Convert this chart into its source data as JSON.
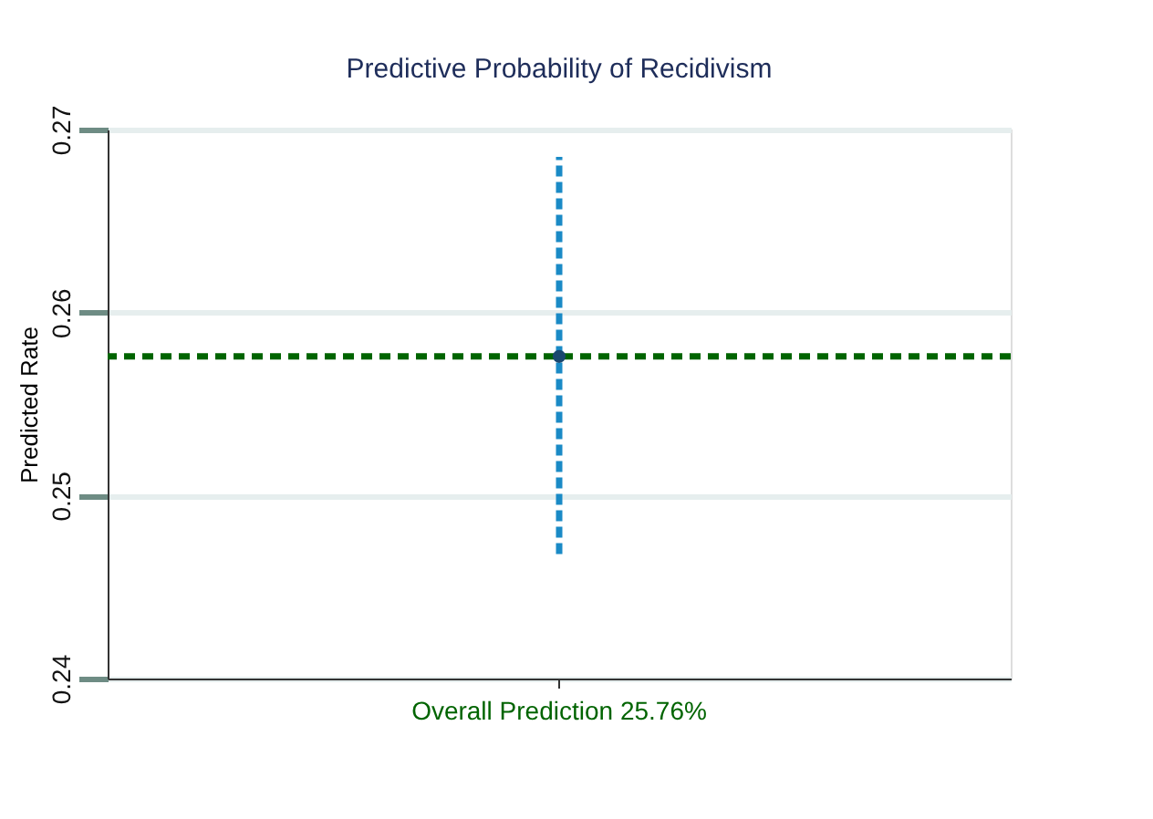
{
  "chart_data": {
    "type": "scatter",
    "title": "Predictive Probability of Recidivism",
    "ylabel": "Predicted Rate",
    "categories": [
      "Overall Prediction 25.76%"
    ],
    "series": [
      {
        "color": "#1a476f",
        "values": [
          0.2576
        ],
        "errors": [
          [
            0.2468,
            0.2685
          ]
        ]
      }
    ],
    "ylim": [
      0.24,
      0.27
    ],
    "yticks": [
      0.24,
      0.25,
      0.26,
      0.27
    ],
    "grid": "y",
    "marker": "circle",
    "ref_lines": [
      {
        "axis": "y",
        "value": 0.2576,
        "color": "#006400",
        "line_style": "dashed"
      }
    ]
  }
}
